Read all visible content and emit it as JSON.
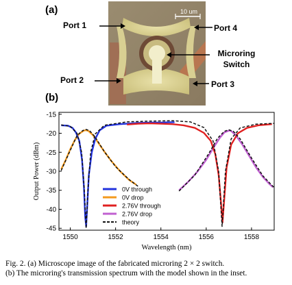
{
  "panel_a": {
    "label": "(a)",
    "ports": [
      "Port 1",
      "Port 4",
      "Port 2",
      "Port 3"
    ],
    "device_label_line1": "Microring",
    "device_label_line2": "Switch",
    "scale_bar": "10 um"
  },
  "panel_b": {
    "label": "(b)"
  },
  "chart_data": {
    "type": "line",
    "xlabel": "Wavelength  (nm)",
    "ylabel": "Output Power (dBm)",
    "xlim": [
      1549.5,
      1559.0
    ],
    "ylim": [
      -45.5,
      -14.5
    ],
    "x_ticks": [
      1550,
      1552,
      1554,
      1556,
      1558
    ],
    "y_ticks": [
      -15,
      -20,
      -25,
      -30,
      -35,
      -40,
      -45
    ],
    "legend_position": "inside, center-bottom",
    "series": [
      {
        "name": "0V through",
        "color": "#2233dd",
        "points": [
          [
            1549.6,
            -17.9
          ],
          [
            1549.9,
            -18.0
          ],
          [
            1550.1,
            -18.6
          ],
          [
            1550.25,
            -19.8
          ],
          [
            1550.4,
            -22.0
          ],
          [
            1550.52,
            -27.0
          ],
          [
            1550.6,
            -34.0
          ],
          [
            1550.66,
            -42.0
          ],
          [
            1550.7,
            -44.5
          ],
          [
            1550.74,
            -40.0
          ],
          [
            1550.82,
            -31.0
          ],
          [
            1550.95,
            -25.0
          ],
          [
            1551.1,
            -21.5
          ],
          [
            1551.3,
            -19.2
          ],
          [
            1551.6,
            -18.0
          ],
          [
            1552.2,
            -17.6
          ],
          [
            1553.0,
            -17.3
          ],
          [
            1553.6,
            -17.2
          ],
          [
            1554.0,
            -17.2
          ],
          [
            1554.4,
            -17.1
          ],
          [
            1554.6,
            -17.1
          ]
        ]
      },
      {
        "name": "0V drop",
        "color": "#f39a1e",
        "points": [
          [
            1549.6,
            -29.5
          ],
          [
            1549.8,
            -27.0
          ],
          [
            1550.0,
            -24.2
          ],
          [
            1550.2,
            -21.8
          ],
          [
            1550.4,
            -20.1
          ],
          [
            1550.6,
            -19.3
          ],
          [
            1550.7,
            -19.2
          ],
          [
            1550.8,
            -19.4
          ],
          [
            1551.0,
            -20.5
          ],
          [
            1551.2,
            -22.2
          ],
          [
            1551.5,
            -24.8
          ],
          [
            1551.8,
            -27.2
          ],
          [
            1552.2,
            -30.0
          ],
          [
            1552.6,
            -32.3
          ],
          [
            1552.9,
            -33.5
          ]
        ]
      },
      {
        "name": "2.76V through",
        "color": "#e02020",
        "points": [
          [
            1552.5,
            -17.7
          ],
          [
            1553.0,
            -17.5
          ],
          [
            1553.5,
            -17.4
          ],
          [
            1554.0,
            -17.5
          ],
          [
            1554.5,
            -17.6
          ],
          [
            1555.0,
            -17.9
          ],
          [
            1555.5,
            -18.6
          ],
          [
            1555.9,
            -19.9
          ],
          [
            1556.2,
            -22.0
          ],
          [
            1556.4,
            -25.5
          ],
          [
            1556.55,
            -31.0
          ],
          [
            1556.65,
            -38.0
          ],
          [
            1556.72,
            -43.5
          ],
          [
            1556.8,
            -37.0
          ],
          [
            1556.9,
            -29.0
          ],
          [
            1557.1,
            -23.0
          ],
          [
            1557.4,
            -20.0
          ],
          [
            1557.8,
            -18.6
          ],
          [
            1558.3,
            -17.9
          ],
          [
            1558.9,
            -17.6
          ]
        ]
      },
      {
        "name": "2.76V drop",
        "color": "#c060d0",
        "points": [
          [
            1554.8,
            -35.0
          ],
          [
            1555.2,
            -32.8
          ],
          [
            1555.6,
            -30.2
          ],
          [
            1556.0,
            -27.0
          ],
          [
            1556.3,
            -24.0
          ],
          [
            1556.6,
            -21.2
          ],
          [
            1556.8,
            -19.8
          ],
          [
            1557.0,
            -19.3
          ],
          [
            1557.1,
            -19.4
          ],
          [
            1557.3,
            -20.5
          ],
          [
            1557.6,
            -23.0
          ],
          [
            1557.9,
            -26.0
          ],
          [
            1558.2,
            -29.0
          ],
          [
            1558.5,
            -31.5
          ],
          [
            1558.8,
            -33.4
          ],
          [
            1558.95,
            -34.2
          ]
        ]
      },
      {
        "name": "theory",
        "color": "#111111",
        "dashed": true,
        "points": [
          [
            1549.6,
            -17.8
          ],
          [
            1550.0,
            -18.2
          ],
          [
            1550.3,
            -20.0
          ],
          [
            1550.5,
            -25.0
          ],
          [
            1550.62,
            -35.0
          ],
          [
            1550.7,
            -45.0
          ],
          [
            1550.78,
            -35.0
          ],
          [
            1550.9,
            -25.0
          ],
          [
            1551.1,
            -20.2
          ],
          [
            1551.5,
            -17.9
          ],
          [
            1552.5,
            -17.0
          ],
          [
            1553.5,
            -16.8
          ],
          [
            1554.5,
            -16.7
          ],
          [
            1555.3,
            -17.0
          ],
          [
            1555.9,
            -18.5
          ],
          [
            1556.3,
            -22.0
          ],
          [
            1556.55,
            -30.0
          ],
          [
            1556.7,
            -44.5
          ],
          [
            1556.85,
            -30.0
          ],
          [
            1557.1,
            -21.5
          ],
          [
            1557.5,
            -18.6
          ],
          [
            1558.2,
            -17.6
          ],
          [
            1559.0,
            -17.4
          ]
        ]
      },
      {
        "name": "theory-drop-0V",
        "color": "#111111",
        "dashed": true,
        "legend": false,
        "points": [
          [
            1549.6,
            -29.8
          ],
          [
            1550.0,
            -24.5
          ],
          [
            1550.3,
            -20.6
          ],
          [
            1550.55,
            -19.3
          ],
          [
            1550.7,
            -19.0
          ],
          [
            1550.85,
            -19.3
          ],
          [
            1551.1,
            -21.0
          ],
          [
            1551.5,
            -24.8
          ],
          [
            1552.0,
            -28.8
          ],
          [
            1552.6,
            -32.2
          ],
          [
            1553.0,
            -34.0
          ]
        ]
      },
      {
        "name": "theory-drop-2.76V",
        "color": "#111111",
        "dashed": true,
        "legend": false,
        "points": [
          [
            1554.8,
            -35.2
          ],
          [
            1555.5,
            -31.0
          ],
          [
            1556.1,
            -25.5
          ],
          [
            1556.5,
            -21.3
          ],
          [
            1556.8,
            -19.5
          ],
          [
            1557.0,
            -19.1
          ],
          [
            1557.2,
            -19.5
          ],
          [
            1557.5,
            -21.5
          ],
          [
            1558.0,
            -26.5
          ],
          [
            1558.5,
            -31.2
          ],
          [
            1559.0,
            -34.3
          ]
        ]
      }
    ]
  },
  "caption": {
    "line1": "Fig. 2.   (a) Microscope image of the fabricated microring 2 × 2 switch.",
    "line2": "(b) The microring's transmission spectrum with the model shown in the inset."
  }
}
